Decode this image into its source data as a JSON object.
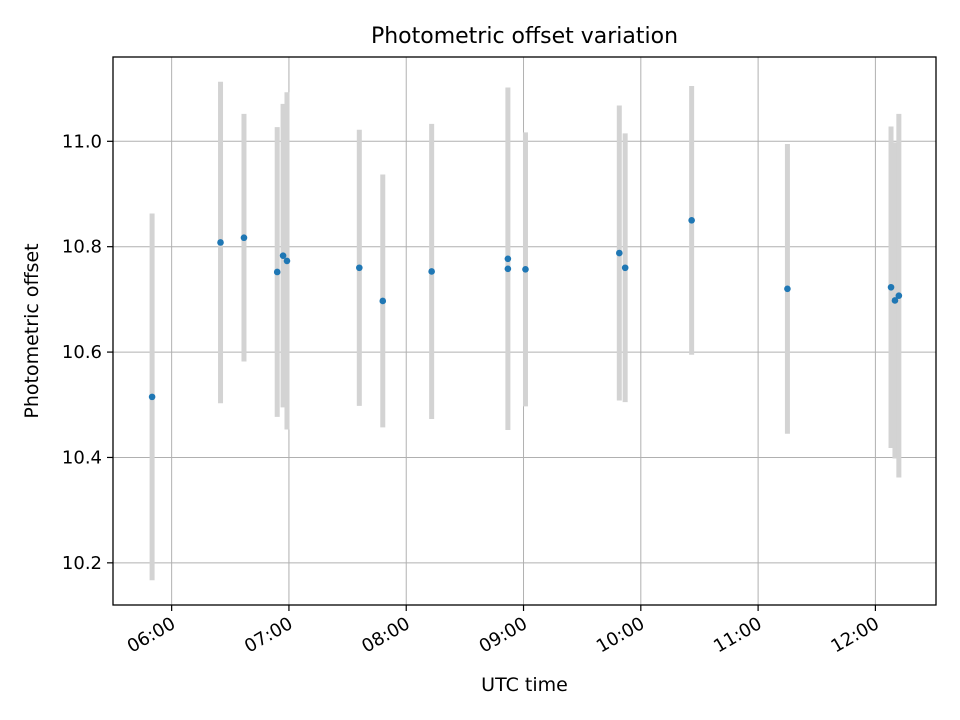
{
  "chart_data": {
    "type": "scatter",
    "title": "Photometric offset variation",
    "xlabel": "UTC time",
    "ylabel": "Photometric offset",
    "x_tick_labels": [
      "06:00",
      "07:00",
      "08:00",
      "09:00",
      "10:00",
      "11:00",
      "12:00"
    ],
    "x_ticks": [
      "06:00",
      "07:00",
      "08:00",
      "09:00",
      "10:00",
      "11:00",
      "12:00"
    ],
    "xlim": [
      "05:30",
      "12:31"
    ],
    "y_tick_labels": [
      "10.2",
      "10.4",
      "10.6",
      "10.8",
      "11.0"
    ],
    "y_ticks": [
      10.2,
      10.4,
      10.6,
      10.8,
      11.0
    ],
    "ylim": [
      10.12,
      11.16
    ],
    "grid": true,
    "marker_color": "#1f77b4",
    "errorbar_color": "#d3d3d3",
    "points": [
      {
        "x": "05:50",
        "y": 10.515,
        "err": 0.348
      },
      {
        "x": "06:25",
        "y": 10.808,
        "err": 0.305
      },
      {
        "x": "06:37",
        "y": 10.817,
        "err": 0.235
      },
      {
        "x": "06:54",
        "y": 10.752,
        "err": 0.275
      },
      {
        "x": "06:57",
        "y": 10.783,
        "err": 0.288
      },
      {
        "x": "06:59",
        "y": 10.773,
        "err": 0.32
      },
      {
        "x": "07:36",
        "y": 10.76,
        "err": 0.262
      },
      {
        "x": "07:48",
        "y": 10.697,
        "err": 0.24
      },
      {
        "x": "08:13",
        "y": 10.753,
        "err": 0.28
      },
      {
        "x": "08:52",
        "y": 10.777,
        "err": 0.325
      },
      {
        "x": "08:52",
        "y": 10.758,
        "err": 0.0
      },
      {
        "x": "09:01",
        "y": 10.757,
        "err": 0.26
      },
      {
        "x": "09:49",
        "y": 10.788,
        "err": 0.28
      },
      {
        "x": "09:52",
        "y": 10.76,
        "err": 0.255
      },
      {
        "x": "10:26",
        "y": 10.85,
        "err": 0.255
      },
      {
        "x": "11:15",
        "y": 10.72,
        "err": 0.275
      },
      {
        "x": "12:08",
        "y": 10.723,
        "err": 0.305
      },
      {
        "x": "12:10",
        "y": 10.698,
        "err": 0.3
      },
      {
        "x": "12:12",
        "y": 10.707,
        "err": 0.345
      }
    ]
  }
}
